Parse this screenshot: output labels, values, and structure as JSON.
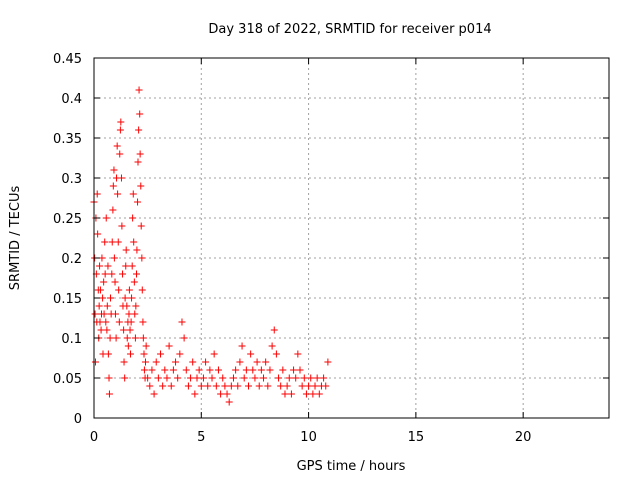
{
  "chart_data": {
    "type": "scatter",
    "title": "Day 318 of 2022, SRMTID for receiver p014",
    "xlabel": "GPS time / hours",
    "ylabel": "SRMTID / TECUs",
    "xlim": [
      0,
      24
    ],
    "ylim": [
      0,
      0.45
    ],
    "xticks": [
      0,
      5,
      10,
      15,
      20
    ],
    "xtick_labels": [
      "0",
      "5",
      "10",
      "15",
      "20"
    ],
    "yticks": [
      0,
      0.05,
      0.1,
      0.15,
      0.2,
      0.25,
      0.3,
      0.35,
      0.4,
      0.45
    ],
    "ytick_labels": [
      "0",
      "0.05",
      "0.1",
      "0.15",
      "0.2",
      "0.25",
      "0.3",
      "0.35",
      "0.4",
      "0.45"
    ],
    "grid": true,
    "marker": "+",
    "color": "#ff0000",
    "series": [
      {
        "points": [
          [
            0.0,
            0.27
          ],
          [
            0.03,
            0.2
          ],
          [
            0.05,
            0.13
          ],
          [
            0.07,
            0.07
          ],
          [
            0.09,
            0.25
          ],
          [
            0.11,
            0.18
          ],
          [
            0.13,
            0.12
          ],
          [
            0.15,
            0.28
          ],
          [
            0.17,
            0.23
          ],
          [
            0.2,
            0.16
          ],
          [
            0.22,
            0.1
          ],
          [
            0.24,
            0.14
          ],
          [
            0.26,
            0.19
          ],
          [
            0.28,
            0.12
          ],
          [
            0.3,
            0.16
          ],
          [
            0.33,
            0.11
          ],
          [
            0.35,
            0.13
          ],
          [
            0.37,
            0.2
          ],
          [
            0.4,
            0.15
          ],
          [
            0.42,
            0.08
          ],
          [
            0.45,
            0.17
          ],
          [
            0.47,
            0.13
          ],
          [
            0.5,
            0.22
          ],
          [
            0.52,
            0.18
          ],
          [
            0.55,
            0.12
          ],
          [
            0.57,
            0.25
          ],
          [
            0.6,
            0.11
          ],
          [
            0.62,
            0.14
          ],
          [
            0.65,
            0.19
          ],
          [
            0.67,
            0.08
          ],
          [
            0.7,
            0.05
          ],
          [
            0.72,
            0.03
          ],
          [
            0.75,
            0.1
          ],
          [
            0.77,
            0.15
          ],
          [
            0.8,
            0.13
          ],
          [
            0.83,
            0.18
          ],
          [
            0.85,
            0.22
          ],
          [
            0.88,
            0.26
          ],
          [
            0.9,
            0.29
          ],
          [
            0.93,
            0.31
          ],
          [
            0.95,
            0.2
          ],
          [
            0.98,
            0.17
          ],
          [
            1.0,
            0.13
          ],
          [
            1.03,
            0.1
          ],
          [
            1.05,
            0.3
          ],
          [
            1.08,
            0.34
          ],
          [
            1.1,
            0.28
          ],
          [
            1.13,
            0.22
          ],
          [
            1.15,
            0.16
          ],
          [
            1.18,
            0.12
          ],
          [
            1.2,
            0.33
          ],
          [
            1.23,
            0.36
          ],
          [
            1.25,
            0.37
          ],
          [
            1.28,
            0.3
          ],
          [
            1.3,
            0.24
          ],
          [
            1.33,
            0.18
          ],
          [
            1.35,
            0.14
          ],
          [
            1.38,
            0.11
          ],
          [
            1.4,
            0.07
          ],
          [
            1.43,
            0.05
          ],
          [
            1.45,
            0.15
          ],
          [
            1.48,
            0.19
          ],
          [
            1.5,
            0.21
          ],
          [
            1.53,
            0.14
          ],
          [
            1.55,
            0.1
          ],
          [
            1.58,
            0.12
          ],
          [
            1.6,
            0.09
          ],
          [
            1.63,
            0.13
          ],
          [
            1.65,
            0.16
          ],
          [
            1.68,
            0.11
          ],
          [
            1.7,
            0.08
          ],
          [
            1.73,
            0.12
          ],
          [
            1.75,
            0.15
          ],
          [
            1.78,
            0.19
          ],
          [
            1.8,
            0.25
          ],
          [
            1.83,
            0.28
          ],
          [
            1.85,
            0.22
          ],
          [
            1.88,
            0.17
          ],
          [
            1.9,
            0.13
          ],
          [
            1.93,
            0.1
          ],
          [
            1.95,
            0.14
          ],
          [
            1.98,
            0.18
          ],
          [
            2.0,
            0.21
          ],
          [
            2.03,
            0.27
          ],
          [
            2.05,
            0.32
          ],
          [
            2.08,
            0.36
          ],
          [
            2.1,
            0.41
          ],
          [
            2.13,
            0.38
          ],
          [
            2.15,
            0.33
          ],
          [
            2.18,
            0.29
          ],
          [
            2.2,
            0.24
          ],
          [
            2.23,
            0.2
          ],
          [
            2.25,
            0.16
          ],
          [
            2.28,
            0.12
          ],
          [
            2.3,
            0.1
          ],
          [
            2.33,
            0.08
          ],
          [
            2.35,
            0.06
          ],
          [
            2.38,
            0.05
          ],
          [
            2.4,
            0.07
          ],
          [
            2.43,
            0.09
          ],
          [
            2.5,
            0.05
          ],
          [
            2.6,
            0.04
          ],
          [
            2.7,
            0.06
          ],
          [
            2.8,
            0.03
          ],
          [
            2.9,
            0.07
          ],
          [
            3.0,
            0.05
          ],
          [
            3.1,
            0.08
          ],
          [
            3.2,
            0.04
          ],
          [
            3.3,
            0.06
          ],
          [
            3.4,
            0.05
          ],
          [
            3.5,
            0.09
          ],
          [
            3.6,
            0.04
          ],
          [
            3.7,
            0.06
          ],
          [
            3.8,
            0.07
          ],
          [
            3.9,
            0.05
          ],
          [
            4.0,
            0.08
          ],
          [
            4.1,
            0.12
          ],
          [
            4.2,
            0.1
          ],
          [
            4.3,
            0.06
          ],
          [
            4.4,
            0.04
          ],
          [
            4.5,
            0.05
          ],
          [
            4.6,
            0.07
          ],
          [
            4.7,
            0.03
          ],
          [
            4.8,
            0.05
          ],
          [
            4.9,
            0.06
          ],
          [
            5.0,
            0.04
          ],
          [
            5.1,
            0.05
          ],
          [
            5.2,
            0.07
          ],
          [
            5.3,
            0.04
          ],
          [
            5.4,
            0.06
          ],
          [
            5.5,
            0.05
          ],
          [
            5.6,
            0.08
          ],
          [
            5.7,
            0.04
          ],
          [
            5.8,
            0.06
          ],
          [
            5.9,
            0.03
          ],
          [
            6.0,
            0.05
          ],
          [
            6.1,
            0.04
          ],
          [
            6.2,
            0.03
          ],
          [
            6.3,
            0.02
          ],
          [
            6.4,
            0.04
          ],
          [
            6.5,
            0.05
          ],
          [
            6.6,
            0.06
          ],
          [
            6.7,
            0.04
          ],
          [
            6.8,
            0.07
          ],
          [
            6.9,
            0.09
          ],
          [
            7.0,
            0.05
          ],
          [
            7.1,
            0.06
          ],
          [
            7.2,
            0.04
          ],
          [
            7.3,
            0.08
          ],
          [
            7.4,
            0.06
          ],
          [
            7.5,
            0.05
          ],
          [
            7.6,
            0.07
          ],
          [
            7.7,
            0.04
          ],
          [
            7.8,
            0.06
          ],
          [
            7.9,
            0.05
          ],
          [
            8.0,
            0.07
          ],
          [
            8.1,
            0.04
          ],
          [
            8.2,
            0.06
          ],
          [
            8.3,
            0.09
          ],
          [
            8.4,
            0.11
          ],
          [
            8.5,
            0.08
          ],
          [
            8.6,
            0.05
          ],
          [
            8.7,
            0.04
          ],
          [
            8.8,
            0.06
          ],
          [
            8.9,
            0.03
          ],
          [
            9.0,
            0.04
          ],
          [
            9.1,
            0.05
          ],
          [
            9.2,
            0.03
          ],
          [
            9.3,
            0.06
          ],
          [
            9.4,
            0.05
          ],
          [
            9.5,
            0.08
          ],
          [
            9.6,
            0.06
          ],
          [
            9.7,
            0.04
          ],
          [
            9.8,
            0.05
          ],
          [
            9.9,
            0.03
          ],
          [
            10.0,
            0.04
          ],
          [
            10.1,
            0.05
          ],
          [
            10.2,
            0.03
          ],
          [
            10.3,
            0.04
          ],
          [
            10.4,
            0.05
          ],
          [
            10.5,
            0.03
          ],
          [
            10.6,
            0.04
          ],
          [
            10.7,
            0.05
          ],
          [
            10.8,
            0.04
          ],
          [
            10.9,
            0.07
          ]
        ]
      }
    ]
  }
}
